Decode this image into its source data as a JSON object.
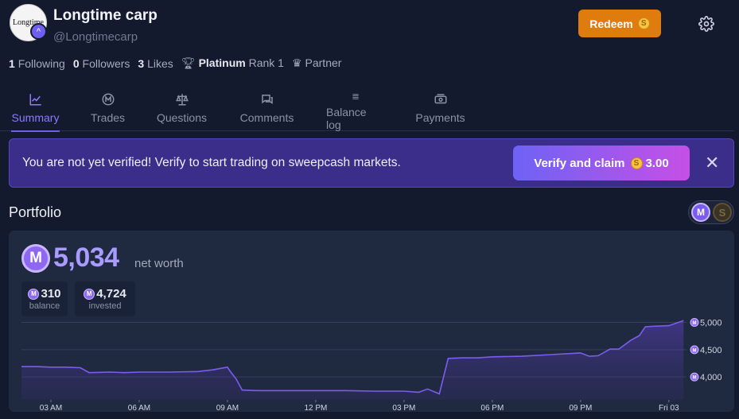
{
  "profile": {
    "avatar_text": "Longtime",
    "name": "Longtime carp",
    "handle": "@Longtimecarp"
  },
  "header": {
    "redeem_label": "Redeem",
    "coin_symbol": "S"
  },
  "stats": {
    "following_count": "1",
    "following_label": "Following",
    "followers_count": "0",
    "followers_label": "Followers",
    "likes_count": "3",
    "likes_label": "Likes",
    "tier": "Platinum",
    "rank_label": "Rank 1",
    "partner_label": "Partner"
  },
  "tabs": [
    {
      "label": "Summary",
      "icon": "chart-line-icon",
      "active": true
    },
    {
      "label": "Trades",
      "icon": "mana-icon",
      "active": false
    },
    {
      "label": "Questions",
      "icon": "scale-icon",
      "active": false
    },
    {
      "label": "Comments",
      "icon": "chat-icon",
      "active": false
    },
    {
      "label": "Balance log",
      "icon": "list-icon",
      "active": false
    },
    {
      "label": "Payments",
      "icon": "money-icon",
      "active": false
    }
  ],
  "banner": {
    "text": "You are not yet verified! Verify to start trading on sweepcash markets.",
    "button_label": "Verify and claim",
    "button_amount": "3.00",
    "coin_symbol": "S"
  },
  "portfolio": {
    "title": "Portfolio",
    "toggle_mana_symbol": "M",
    "toggle_cash_symbol": "S",
    "net_worth": "5,034",
    "net_worth_label": "net worth",
    "balance_value": "310",
    "balance_label": "balance",
    "invested_value": "4,724",
    "invested_label": "invested",
    "mana_symbol": "M"
  },
  "chart_data": {
    "type": "area",
    "x_tick_labels": [
      "03 AM",
      "06 AM",
      "09 AM",
      "12 PM",
      "03 PM",
      "06 PM",
      "09 PM",
      "Fri 03"
    ],
    "y_tick_labels": [
      "5,000",
      "4,500",
      "4,000"
    ],
    "y_ticks": [
      5000,
      4500,
      4000
    ],
    "x_hours": [
      0,
      0.5,
      1,
      1.5,
      2,
      2.3,
      3,
      3.5,
      4,
      5,
      6,
      6.5,
      7,
      7.1,
      7.3,
      7.5,
      8,
      9,
      10,
      11,
      12,
      13,
      13.5,
      13.8,
      14.2,
      14.5,
      15,
      15.5,
      16,
      17,
      18,
      19,
      19.3,
      19.6,
      20,
      20.3,
      20.7,
      21,
      21.2,
      21.5,
      22,
      22.5
    ],
    "values": [
      4190,
      4190,
      4180,
      4180,
      4170,
      4080,
      4090,
      4080,
      4090,
      4090,
      4100,
      4130,
      4180,
      4100,
      3960,
      3760,
      3750,
      3750,
      3750,
      3750,
      3740,
      3740,
      3720,
      3780,
      3690,
      4340,
      4350,
      4350,
      4370,
      4380,
      4410,
      4440,
      4380,
      4390,
      4510,
      4510,
      4670,
      4760,
      4920,
      4930,
      4940,
      5034
    ],
    "ylim": [
      3580,
      5080
    ],
    "xlim": [
      0,
      22.6
    ],
    "line_color": "#7c5cf0",
    "grid": true
  }
}
